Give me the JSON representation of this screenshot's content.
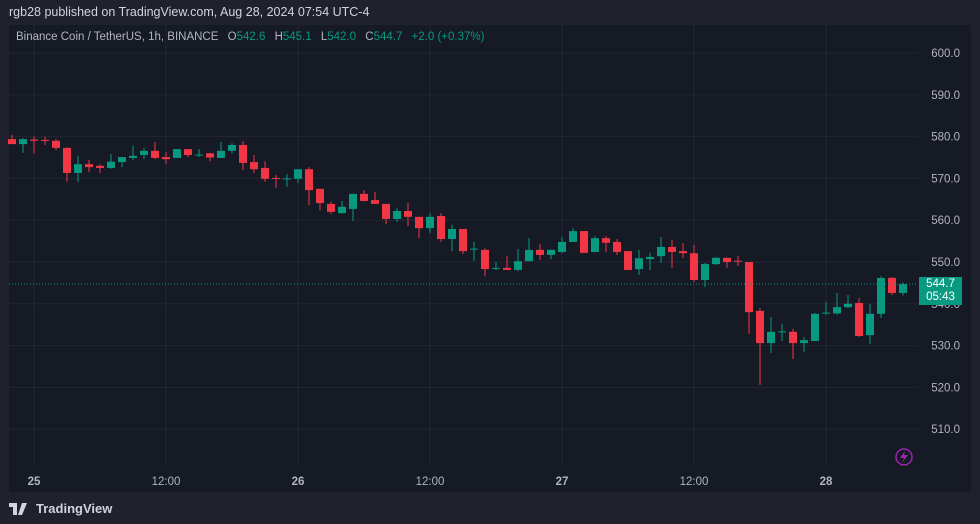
{
  "header": {
    "published": "rgb28 published on TradingView.com, Aug 28, 2024 07:54 UTC-4"
  },
  "legend": {
    "symbol": "Binance Coin / TetherUS, 1h, BINANCE",
    "o_label": "O",
    "o": "542.6",
    "h_label": "H",
    "h": "545.1",
    "l_label": "L",
    "l": "542.0",
    "c_label": "C",
    "c": "544.7",
    "change": "+2.0 (+0.37%)"
  },
  "last_price": {
    "price": "544.7",
    "countdown": "05:43"
  },
  "footer": {
    "brand": "TradingView"
  },
  "colors": {
    "up": "#089981",
    "down": "#f23645",
    "grid": "#232632",
    "background": "#161a25",
    "accent_icon": "#9c27b0"
  },
  "icons": {
    "lightning": "lightning-icon",
    "logo": "tradingview-logo-icon"
  },
  "chart_data": {
    "type": "candlestick",
    "interval": "1h",
    "ylim": [
      502,
      604
    ],
    "grid": true,
    "y_ticks": [
      "510.0",
      "520.0",
      "530.0",
      "540.0",
      "550.0",
      "560.0",
      "570.0",
      "580.0",
      "590.0",
      "600.0"
    ],
    "x_ticks": [
      {
        "label": "25",
        "index": 2
      },
      {
        "label": "12:00",
        "index": 14
      },
      {
        "label": "26",
        "index": 26
      },
      {
        "label": "12:00",
        "index": 38
      },
      {
        "label": "27",
        "index": 50
      },
      {
        "label": "12:00",
        "index": 62
      },
      {
        "label": "28",
        "index": 74
      }
    ],
    "ohlc": [
      [
        579.4,
        580.4,
        578.2,
        578.2
      ],
      [
        578.2,
        579.6,
        576.1,
        579.4
      ],
      [
        579.3,
        580,
        576,
        579
      ],
      [
        579.2,
        580,
        578,
        579
      ],
      [
        579,
        579.4,
        576.8,
        577.3
      ],
      [
        577.3,
        577.4,
        569.2,
        571.3
      ],
      [
        571.3,
        575.4,
        569.2,
        573.4
      ],
      [
        573.4,
        574.4,
        571.5,
        572.7
      ],
      [
        573,
        573.4,
        571.3,
        572.5
      ],
      [
        572.5,
        575.8,
        572.3,
        574
      ],
      [
        573.9,
        575.1,
        572.7,
        575.1
      ],
      [
        574.9,
        577.8,
        574.4,
        575.4
      ],
      [
        575.6,
        577.3,
        574.6,
        576.6
      ],
      [
        576.6,
        578.7,
        574.6,
        574.9
      ],
      [
        575.1,
        576.3,
        573.4,
        574.6
      ],
      [
        574.9,
        577,
        574.9,
        577
      ],
      [
        577,
        577,
        575.1,
        575.6
      ],
      [
        575.5,
        577,
        575.1,
        575.7
      ],
      [
        576,
        576.1,
        574.1,
        575
      ],
      [
        574.9,
        578.7,
        574.9,
        576.6
      ],
      [
        576.6,
        578.4,
        576,
        578
      ],
      [
        578,
        578.9,
        572,
        573.7
      ],
      [
        573.9,
        575.6,
        571.3,
        572.2
      ],
      [
        572.5,
        574.1,
        569.2,
        569.9
      ],
      [
        570.1,
        570.8,
        567.7,
        569.9
      ],
      [
        569.8,
        571,
        568,
        570
      ],
      [
        569.9,
        572.2,
        568.9,
        572.2
      ],
      [
        572.2,
        572.7,
        563.6,
        567.2
      ],
      [
        567.5,
        567.5,
        562.4,
        564.1
      ],
      [
        563.9,
        564.4,
        561.5,
        562
      ],
      [
        561.7,
        564.6,
        561.5,
        563.2
      ],
      [
        562.7,
        566.3,
        559.8,
        566.3
      ],
      [
        566.3,
        567.2,
        564.4,
        564.6
      ],
      [
        564.8,
        566.7,
        563.9,
        563.9
      ],
      [
        563.9,
        563.9,
        559.1,
        560.3
      ],
      [
        560.3,
        562.9,
        559.6,
        562.2
      ],
      [
        562.2,
        564.1,
        558.6,
        560.8
      ],
      [
        560.8,
        560.8,
        555.7,
        558.1
      ],
      [
        558.1,
        561.7,
        556.9,
        560.8
      ],
      [
        561,
        561.7,
        554.8,
        555.5
      ],
      [
        555.5,
        558.9,
        552.6,
        557.9
      ],
      [
        557.9,
        557.9,
        551.9,
        552.6
      ],
      [
        553,
        554.8,
        550.3,
        553.2
      ],
      [
        552.9,
        553.3,
        546.6,
        548.3
      ],
      [
        548.4,
        550,
        548.1,
        548.6
      ],
      [
        548.6,
        551.4,
        548.1,
        548.1
      ],
      [
        548.1,
        553.1,
        547.8,
        550.2
      ],
      [
        550.2,
        555.7,
        550.2,
        552.9
      ],
      [
        552.9,
        554.3,
        550.5,
        551.7
      ],
      [
        551.7,
        552.9,
        550.7,
        552.9
      ],
      [
        552.4,
        556,
        552.1,
        554.8
      ],
      [
        554.8,
        558.1,
        554.8,
        557.4
      ],
      [
        557.4,
        557.4,
        552.1,
        552.2
      ],
      [
        552.4,
        556.2,
        552.4,
        555.7
      ],
      [
        555.7,
        556.2,
        552.4,
        554.6
      ],
      [
        554.8,
        555.5,
        551.7,
        552.4
      ],
      [
        552.6,
        552.6,
        548.1,
        548.1
      ],
      [
        548.3,
        552.9,
        546.9,
        550.9
      ],
      [
        550.7,
        552.2,
        548.1,
        551.2
      ],
      [
        551.4,
        556,
        549.8,
        553.6
      ],
      [
        553.6,
        555.3,
        548.6,
        552.4
      ],
      [
        552.6,
        554.5,
        551,
        552.1
      ],
      [
        552.1,
        554.1,
        545.2,
        545.7
      ],
      [
        545.7,
        549.8,
        544,
        549.5
      ],
      [
        549.5,
        551.2,
        549.3,
        551
      ],
      [
        551,
        551,
        548.6,
        550
      ],
      [
        550.3,
        551.4,
        549,
        550.2
      ],
      [
        550,
        550,
        532.8,
        538
      ],
      [
        538.3,
        539,
        520.6,
        530.6
      ],
      [
        530.6,
        536.8,
        528.2,
        533.3
      ],
      [
        533.2,
        535.2,
        531.1,
        533.4
      ],
      [
        533.3,
        534,
        526.8,
        530.6
      ],
      [
        530.6,
        532,
        528.5,
        531.3
      ],
      [
        531.1,
        537.8,
        531.1,
        537.6
      ],
      [
        537.7,
        540.4,
        537.4,
        537.9
      ],
      [
        537.7,
        542.6,
        537.4,
        539.2
      ],
      [
        539.2,
        542.1,
        539,
        540
      ],
      [
        540.2,
        541.4,
        532.1,
        532.3
      ],
      [
        532.5,
        540,
        530.4,
        537.6
      ],
      [
        537.6,
        546.6,
        536.6,
        546.2
      ],
      [
        546.2,
        546.4,
        542.1,
        542.6
      ],
      [
        542.6,
        545.1,
        542,
        544.7
      ]
    ]
  }
}
